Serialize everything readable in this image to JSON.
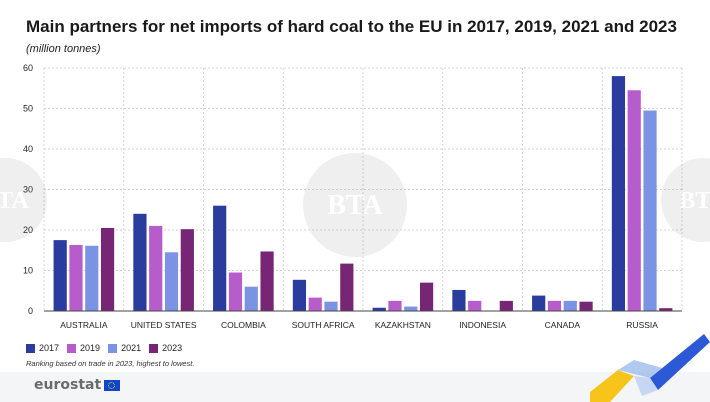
{
  "chart_data": {
    "type": "bar",
    "title": "Main partners for net imports of hard coal to the EU in 2017, 2019, 2021 and 2023",
    "subtitle": "(million tonnes)",
    "categories": [
      "AUSTRALIA",
      "UNITED STATES",
      "COLOMBIA",
      "SOUTH AFRICA",
      "KAZAKHSTAN",
      "INDONESIA",
      "CANADA",
      "RUSSIA"
    ],
    "series": [
      {
        "name": "2017",
        "color": "#2a3d9e",
        "values": [
          17.5,
          24,
          26,
          7.7,
          0.8,
          5.2,
          3.8,
          58
        ]
      },
      {
        "name": "2019",
        "color": "#b75ccb",
        "values": [
          16.3,
          21,
          9.5,
          3.3,
          2.5,
          2.5,
          2.5,
          54.5
        ]
      },
      {
        "name": "2021",
        "color": "#7b93e3",
        "values": [
          16.1,
          14.5,
          6,
          2.3,
          1.1,
          0,
          2.5,
          49.5
        ]
      },
      {
        "name": "2023",
        "color": "#772676",
        "values": [
          20.5,
          20.2,
          14.7,
          11.7,
          7,
          2.5,
          2.3,
          0.7
        ]
      }
    ],
    "ylim": [
      0,
      60
    ],
    "yticks": [
      0,
      10,
      20,
      30,
      40,
      50,
      60
    ],
    "xlabel": "",
    "ylabel": "",
    "grid": true,
    "legend": "bottom-left"
  },
  "note": "Ranking based on trade in 2023, highest to lowest.",
  "logo": {
    "text": "eurostat"
  },
  "watermark": {
    "text": "BTA"
  }
}
